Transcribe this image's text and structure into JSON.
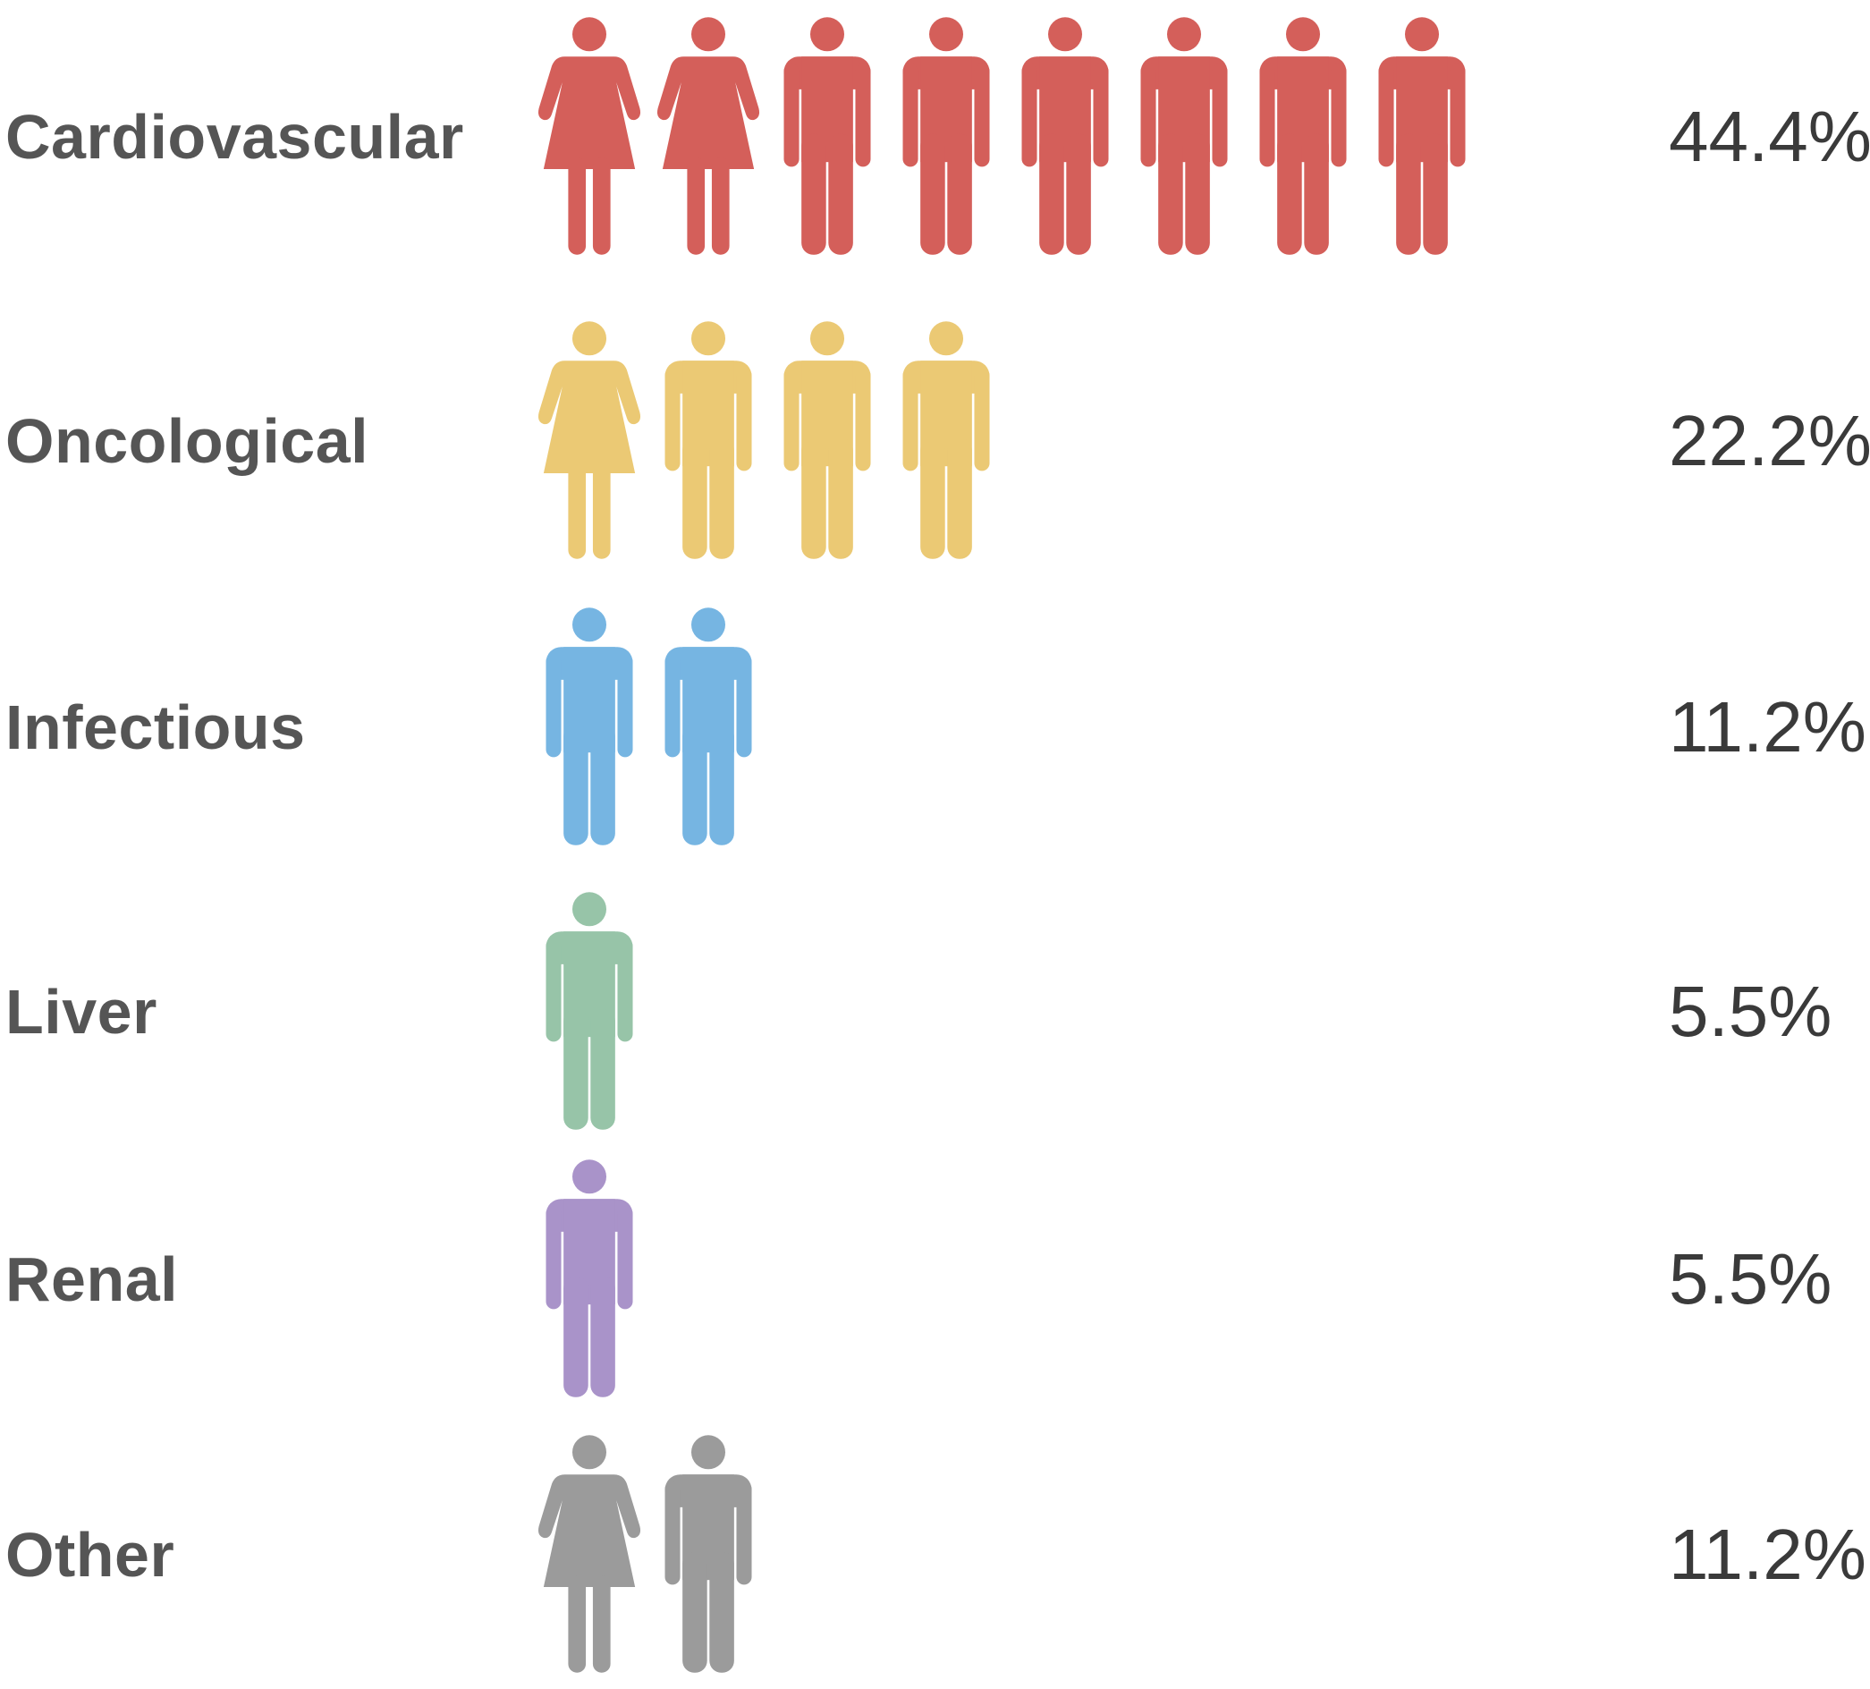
{
  "chart_data": {
    "type": "pictograph",
    "categories": [
      "Cardiovascular",
      "Oncological",
      "Infectious",
      "Liver",
      "Renal",
      "Other"
    ],
    "values": [
      44.4,
      22.2,
      11.2,
      5.5,
      5.5,
      11.2
    ],
    "value_labels": [
      "44.4%",
      "22.2%",
      "11.2%",
      "5.5%",
      "5.5%",
      "11.2%"
    ],
    "icons": [
      [
        "female",
        "female",
        "male",
        "male",
        "male",
        "male",
        "male",
        "male"
      ],
      [
        "female",
        "male",
        "male",
        "male"
      ],
      [
        "male",
        "male"
      ],
      [
        "male"
      ],
      [
        "male"
      ],
      [
        "female",
        "male"
      ]
    ],
    "colors": [
      "#d45f5a",
      "#ebc974",
      "#76b5e2",
      "#97c4a8",
      "#a993c9",
      "#9b9b9b"
    ]
  }
}
